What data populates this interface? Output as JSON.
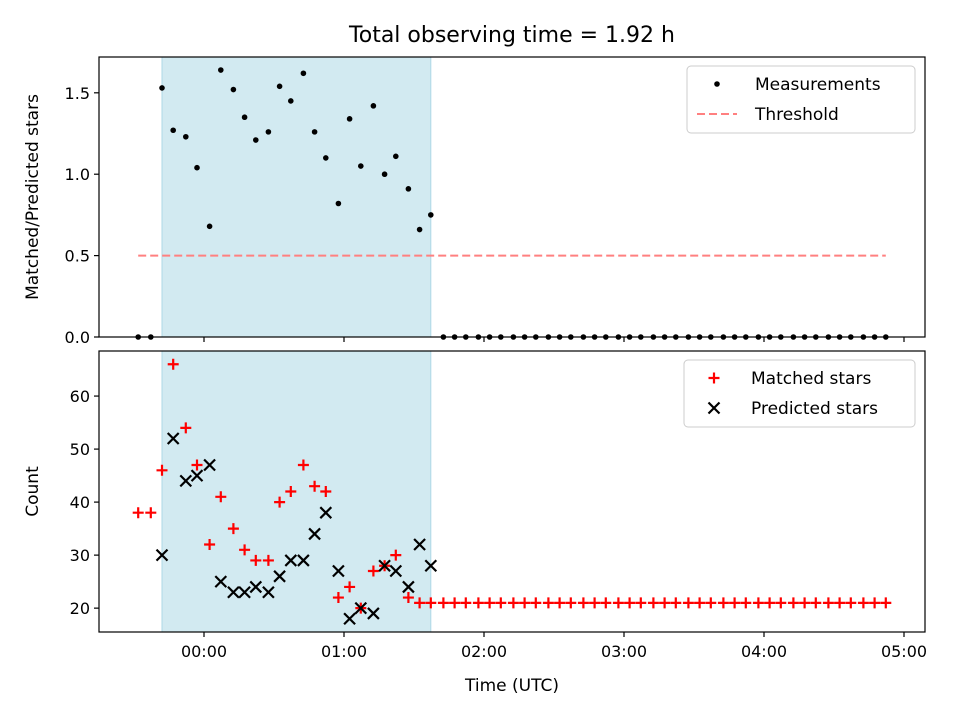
{
  "title": "Total observing time = 1.92 h",
  "colors": {
    "shade": "#add8e6",
    "measure": "#000000",
    "threshold": "#ff8080",
    "matched": "#ff0000",
    "predicted": "#000000"
  },
  "chart_data": [
    {
      "id": "top",
      "type": "scatter",
      "ylabel": "Matched/Predicted stars",
      "xlim": [
        -0.75,
        5.15
      ],
      "ylim": [
        0,
        1.72
      ],
      "yticks": [
        0.0,
        0.5,
        1.0,
        1.5
      ],
      "ytick_labels": [
        "0.0",
        "0.5",
        "1.0",
        "1.5"
      ],
      "xtick_labels_visible": false,
      "shaded_x": [
        -0.3,
        1.62
      ],
      "threshold": {
        "name": "Threshold",
        "y": 0.5,
        "x": [
          -0.47,
          4.87
        ]
      },
      "legend": {
        "placement": "top-right",
        "entries": [
          "Measurements",
          "Threshold"
        ]
      },
      "series": [
        {
          "name": "Measurements",
          "x": [
            -0.47,
            -0.38,
            -0.3,
            -0.22,
            -0.13,
            -0.05,
            0.04,
            0.12,
            0.21,
            0.29,
            0.37,
            0.46,
            0.54,
            0.62,
            0.71,
            0.79,
            0.87,
            0.96,
            1.04,
            1.12,
            1.21,
            1.29,
            1.37,
            1.46,
            1.54,
            1.62,
            1.71,
            1.79,
            1.87,
            1.96,
            2.04,
            2.12,
            2.21,
            2.29,
            2.37,
            2.46,
            2.54,
            2.62,
            2.71,
            2.79,
            2.87,
            2.96,
            3.04,
            3.12,
            3.21,
            3.29,
            3.37,
            3.46,
            3.54,
            3.62,
            3.71,
            3.79,
            3.87,
            3.96,
            4.04,
            4.12,
            4.21,
            4.29,
            4.37,
            4.46,
            4.54,
            4.62,
            4.71,
            4.79,
            4.87
          ],
          "y": [
            0,
            0,
            1.53,
            1.27,
            1.23,
            1.04,
            0.68,
            1.64,
            1.52,
            1.35,
            1.21,
            1.26,
            1.54,
            1.45,
            1.62,
            1.26,
            1.1,
            0.82,
            1.34,
            1.05,
            1.42,
            1.0,
            1.11,
            0.91,
            0.66,
            0.75,
            0,
            0,
            0,
            0,
            0,
            0,
            0,
            0,
            0,
            0,
            0,
            0,
            0,
            0,
            0,
            0,
            0,
            0,
            0,
            0,
            0,
            0,
            0,
            0,
            0,
            0,
            0,
            0,
            0,
            0,
            0,
            0,
            0,
            0,
            0,
            0,
            0,
            0,
            0
          ]
        }
      ]
    },
    {
      "id": "bottom",
      "type": "scatter",
      "ylabel": "Count",
      "xlabel": "Time (UTC)",
      "xlim": [
        -0.75,
        5.15
      ],
      "ylim": [
        15.5,
        68.5
      ],
      "yticks": [
        20,
        30,
        40,
        50,
        60
      ],
      "ytick_labels": [
        "20",
        "30",
        "40",
        "50",
        "60"
      ],
      "xticks": [
        0,
        1,
        2,
        3,
        4,
        5
      ],
      "xtick_labels": [
        "00:00",
        "01:00",
        "02:00",
        "03:00",
        "04:00",
        "05:00"
      ],
      "shaded_x": [
        -0.3,
        1.62
      ],
      "legend": {
        "placement": "top-right",
        "entries": [
          "Matched stars",
          "Predicted stars"
        ]
      },
      "series": [
        {
          "name": "Matched stars",
          "x": [
            -0.47,
            -0.38,
            -0.3,
            -0.22,
            -0.13,
            -0.05,
            0.04,
            0.12,
            0.21,
            0.29,
            0.37,
            0.46,
            0.54,
            0.62,
            0.71,
            0.79,
            0.87,
            0.96,
            1.04,
            1.12,
            1.21,
            1.29,
            1.37,
            1.46,
            1.54,
            1.62,
            1.71,
            1.79,
            1.87,
            1.96,
            2.04,
            2.12,
            2.21,
            2.29,
            2.37,
            2.46,
            2.54,
            2.62,
            2.71,
            2.79,
            2.87,
            2.96,
            3.04,
            3.12,
            3.21,
            3.29,
            3.37,
            3.46,
            3.54,
            3.62,
            3.71,
            3.79,
            3.87,
            3.96,
            4.04,
            4.12,
            4.21,
            4.29,
            4.37,
            4.46,
            4.54,
            4.62,
            4.71,
            4.79,
            4.87
          ],
          "y": [
            38,
            38,
            46,
            66,
            54,
            47,
            32,
            41,
            35,
            31,
            29,
            29,
            40,
            42,
            47,
            43,
            42,
            22,
            24,
            20,
            27,
            28,
            30,
            22,
            21,
            21,
            21,
            21,
            21,
            21,
            21,
            21,
            21,
            21,
            21,
            21,
            21,
            21,
            21,
            21,
            21,
            21,
            21,
            21,
            21,
            21,
            21,
            21,
            21,
            21,
            21,
            21,
            21,
            21,
            21,
            21,
            21,
            21,
            21,
            21,
            21,
            21,
            21,
            21,
            21
          ]
        },
        {
          "name": "Predicted stars",
          "x": [
            -0.3,
            -0.22,
            -0.13,
            -0.05,
            0.04,
            0.12,
            0.21,
            0.29,
            0.37,
            0.46,
            0.54,
            0.62,
            0.71,
            0.79,
            0.87,
            0.96,
            1.04,
            1.12,
            1.21,
            1.29,
            1.37,
            1.46,
            1.54,
            1.62
          ],
          "y": [
            30,
            52,
            44,
            45,
            47,
            25,
            23,
            23,
            24,
            23,
            26,
            29,
            29,
            34,
            38,
            27,
            18,
            20,
            19,
            28,
            27,
            24,
            32,
            28
          ]
        }
      ]
    }
  ]
}
